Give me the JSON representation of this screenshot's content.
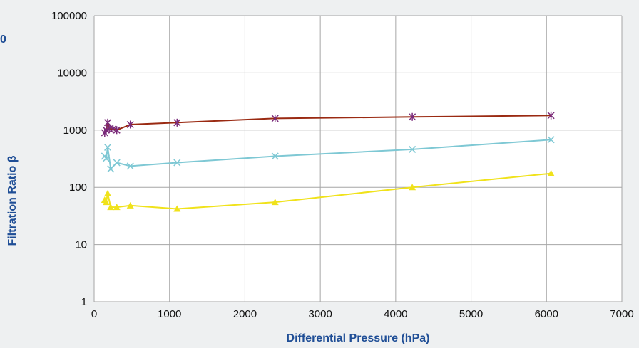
{
  "colors": {
    "background": "#eef0f1",
    "plot_area": "#ffffff",
    "grid": "#a6a6a6",
    "axis_title": "#1f4e96",
    "series_1": "#9a2a12",
    "series_1_marker": "#7a2a7a",
    "series_2": "#7ec8d4",
    "series_3": "#f0e21a"
  },
  "cut_off_label": "0",
  "chart_data": {
    "type": "scatter",
    "title": "",
    "xlabel": "Differential Pressure (hPa)",
    "ylabel": "Filtration Ratio β",
    "xlim": [
      0,
      7000
    ],
    "ylim": [
      1,
      100000
    ],
    "yscale": "log",
    "x_ticks": [
      0,
      1000,
      2000,
      3000,
      4000,
      5000,
      6000,
      7000
    ],
    "y_ticks": [
      1,
      10,
      100,
      1000,
      10000,
      100000
    ],
    "x_tick_labels": [
      "0",
      "1000",
      "2000",
      "3000",
      "4000",
      "5000",
      "6000",
      "7000"
    ],
    "y_tick_labels": [
      "1",
      "10",
      "100",
      "1000",
      "10000",
      "100000"
    ],
    "grid": true,
    "legend": "none",
    "series": [
      {
        "marker": "asterisk",
        "color": "#9a2a12",
        "x": [
          140,
          160,
          180,
          200,
          250,
          300,
          480,
          1100,
          2400,
          4220,
          6060
        ],
        "y": [
          900,
          1000,
          1350,
          1050,
          1050,
          1000,
          1250,
          1350,
          1600,
          1700,
          1800
        ]
      },
      {
        "marker": "x",
        "color": "#7ec8d4",
        "x": [
          140,
          160,
          180,
          220,
          300,
          480,
          1100,
          2400,
          4220,
          6060
        ],
        "y": [
          350,
          320,
          500,
          210,
          270,
          235,
          270,
          350,
          460,
          680
        ]
      },
      {
        "marker": "triangle",
        "color": "#f0e21a",
        "x": [
          140,
          160,
          180,
          220,
          300,
          480,
          1100,
          2400,
          4220,
          6060
        ],
        "y": [
          60,
          55,
          78,
          45,
          45,
          48,
          42,
          55,
          100,
          175
        ]
      }
    ]
  }
}
